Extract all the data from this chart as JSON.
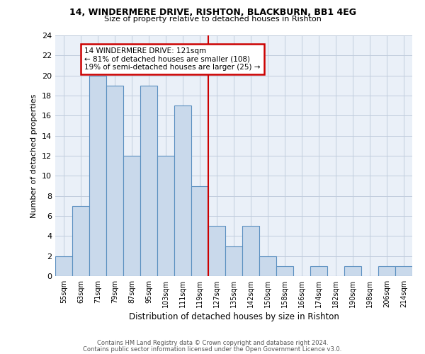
{
  "title1": "14, WINDERMERE DRIVE, RISHTON, BLACKBURN, BB1 4EG",
  "title2": "Size of property relative to detached houses in Rishton",
  "xlabel": "Distribution of detached houses by size in Rishton",
  "ylabel": "Number of detached properties",
  "footnote1": "Contains HM Land Registry data © Crown copyright and database right 2024.",
  "footnote2": "Contains public sector information licensed under the Open Government Licence v3.0.",
  "categories": [
    "55sqm",
    "63sqm",
    "71sqm",
    "79sqm",
    "87sqm",
    "95sqm",
    "103sqm",
    "111sqm",
    "119sqm",
    "127sqm",
    "135sqm",
    "142sqm",
    "150sqm",
    "158sqm",
    "166sqm",
    "174sqm",
    "182sqm",
    "190sqm",
    "198sqm",
    "206sqm",
    "214sqm"
  ],
  "values": [
    2,
    7,
    20,
    19,
    12,
    19,
    12,
    17,
    9,
    5,
    3,
    5,
    2,
    1,
    0,
    1,
    0,
    1,
    0,
    1,
    1
  ],
  "bar_color": "#c9d9eb",
  "bar_edge_color": "#5a8fc0",
  "grid_color": "#c0ccdd",
  "bg_color": "#eaf0f8",
  "annotation_text_line1": "14 WINDERMERE DRIVE: 121sqm",
  "annotation_text_line2": "← 81% of detached houses are smaller (108)",
  "annotation_text_line3": "19% of semi-detached houses are larger (25) →",
  "annotation_box_color": "#cc0000",
  "property_line_color": "#cc0000",
  "ylim": [
    0,
    24
  ],
  "yticks": [
    0,
    2,
    4,
    6,
    8,
    10,
    12,
    14,
    16,
    18,
    20,
    22,
    24
  ]
}
